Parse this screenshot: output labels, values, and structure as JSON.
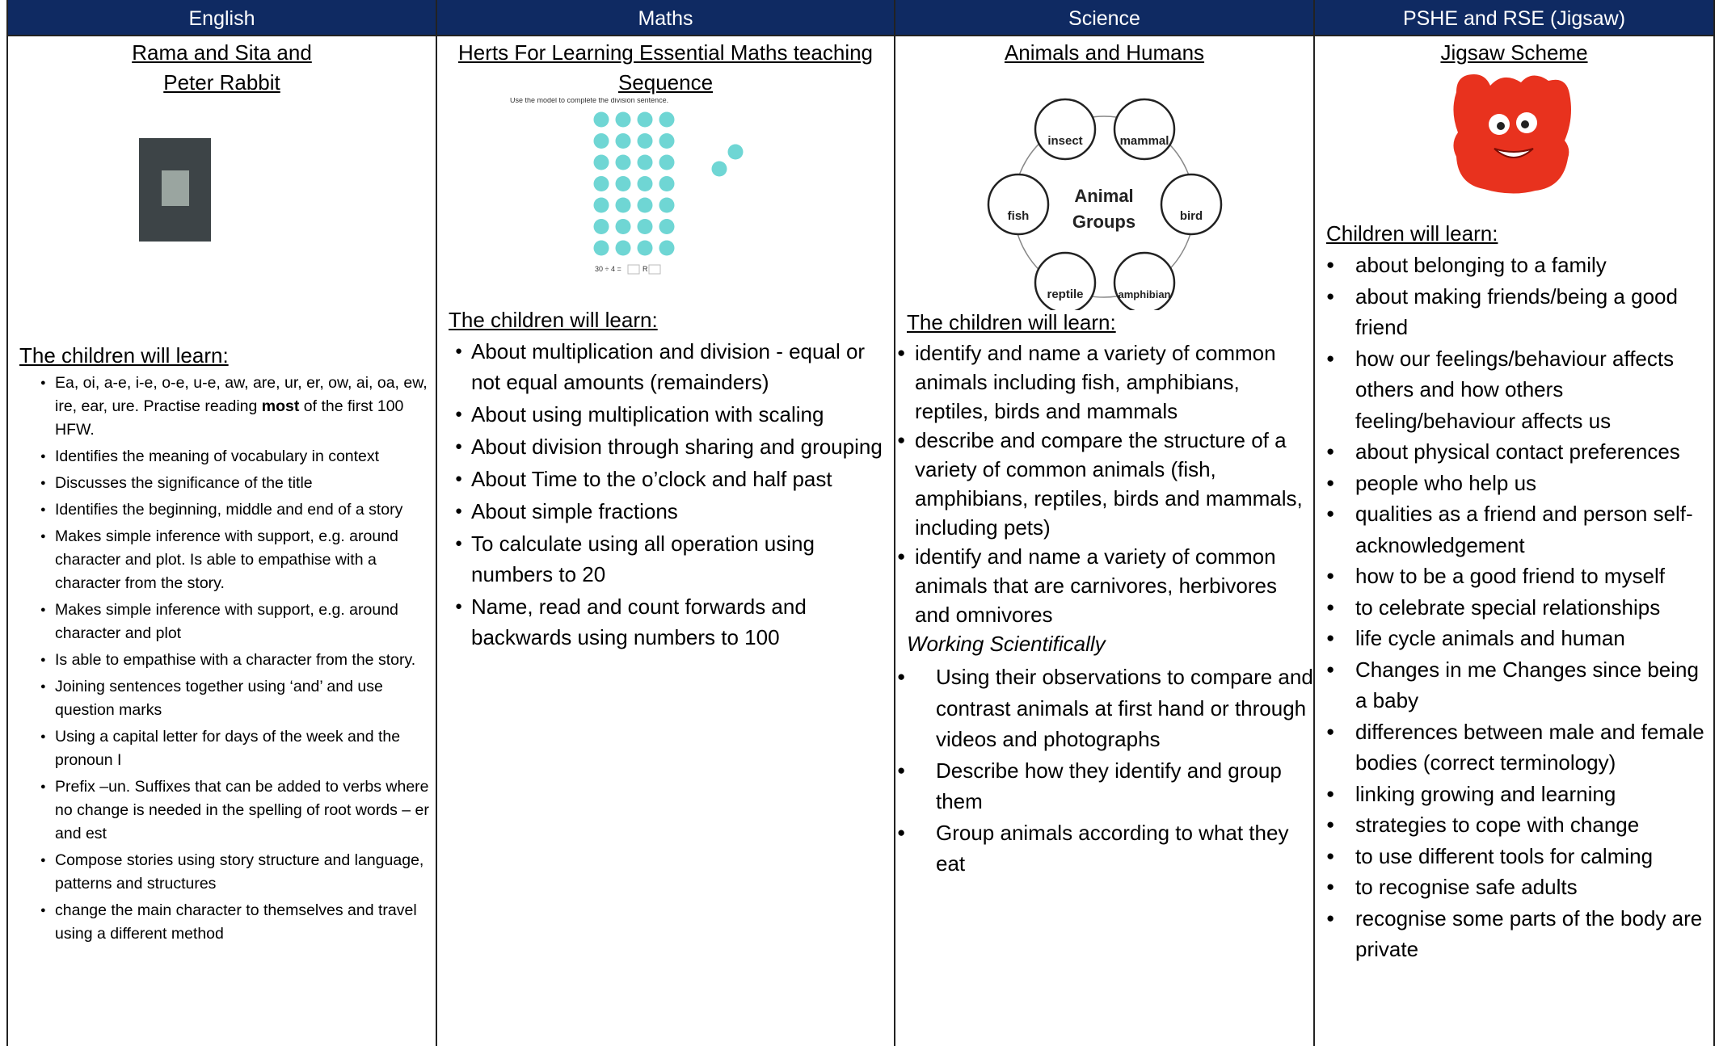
{
  "columns": [
    {
      "header": "English",
      "title_lines": [
        "Rama and Sita and",
        "Peter Rabbit"
      ],
      "learn_heading": "The children will learn:",
      "items": [
        {
          "before": "Ea, oi, a-e, i-e, o-e, u-e, aw, are, ur, er, ow, ai, oa, ew, ire, ear, ure. Practise reading ",
          "bold": "most",
          "after": " of the first 100 HFW."
        },
        "Identifies the meaning of vocabulary in context",
        "Discusses the significance of the title",
        "Identifies the beginning, middle and end of a story",
        "Makes simple inference with support, e.g. around character and plot. Is able to empathise with a character from the story.",
        "Makes simple inference with support, e.g. around character and plot",
        "Is able to empathise with a character from the story.",
        "Joining sentences together using ‘and’ and use question marks",
        "Using a capital letter for days of the week and the pronoun I",
        "Prefix –un. Suffixes that can be added to verbs where no change is needed in the spelling of root words – er and est",
        "Compose stories using story structure and language, patterns and structures",
        "change the main character to themselves and travel using a different method"
      ]
    },
    {
      "header": "Maths",
      "title_lines": [
        "Herts For Learning Essential Maths teaching",
        "Sequence"
      ],
      "image_caption": "Use the model to complete the division sentence.",
      "image_equation": "30 ÷ 4 =",
      "image_remainder": "R",
      "learn_heading": "The children will learn:",
      "items": [
        "About multiplication and division  - equal or not equal amounts (remainders)",
        "About using multiplication with scaling",
        "About division through sharing and grouping",
        "About Time to the o’clock and half past",
        "About simple fractions",
        "To calculate using all operation using numbers to 20",
        "Name, read and count forwards and backwards using numbers to 100"
      ]
    },
    {
      "header": "Science",
      "title_lines": [
        "Animals and Humans"
      ],
      "diagram": {
        "center_lines": [
          "Animal",
          "Groups"
        ],
        "groups": [
          "insect",
          "mammal",
          "bird",
          "amphibian",
          "reptile",
          "fish"
        ]
      },
      "learn_heading": "The children will learn:",
      "items": [
        "identify and name a variety of common animals including fish, amphibians, reptiles, birds and mammals",
        "describe and compare the structure of a variety of common animals (fish, amphibians, reptiles, birds and mammals, including pets)",
        "identify and name a variety of common animals that are carnivores, herbivores and omnivores"
      ],
      "ws_heading": "Working Scientifically",
      "ws_items": [
        "Using their observations to compare and contrast animals at first hand or through videos and photographs",
        "Describe how they identify and group them",
        "Group animals according to what they eat"
      ]
    },
    {
      "header": "PSHE and RSE (Jigsaw)",
      "title_lines": [
        "Jigsaw Scheme"
      ],
      "learn_heading": "Children will learn:",
      "items": [
        "about belonging to a family",
        "about making friends/being a good friend",
        "how our feelings/behaviour affects others and how others feeling/behaviour affects us",
        "about physical contact preferences",
        "people who help us",
        "qualities as a friend and person self-acknowledgement",
        "how to be a good friend to myself",
        "to celebrate special relationships",
        "life cycle animals and human",
        "Changes in me Changes since being a baby",
        "differences between male and female bodies (correct terminology)",
        "linking growing and learning",
        "strategies to cope with change",
        "to use different tools for calming",
        "to recognise safe adults",
        "recognise some parts of the body are private"
      ]
    }
  ]
}
